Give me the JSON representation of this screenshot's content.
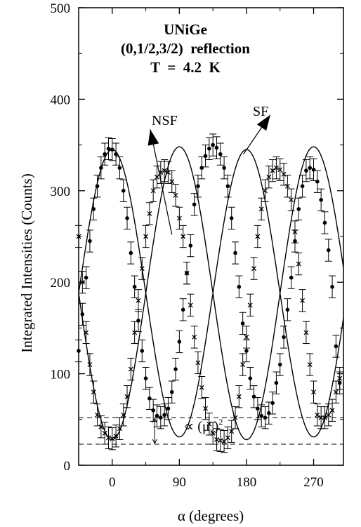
{
  "chart_data": {
    "type": "scatter",
    "title_lines": [
      "UNiGe",
      "(0,1/2,3/2)  reflection",
      "T  =  4.2  K"
    ],
    "xlabel": "α (degrees)",
    "ylabel": "Integrated Intensities (Counts)",
    "xlim": [
      -45,
      310
    ],
    "ylim": [
      0,
      500
    ],
    "xticks": [
      0,
      90,
      180,
      270
    ],
    "yticks": [
      0,
      100,
      200,
      300,
      400,
      500
    ],
    "grid": false,
    "legend": "none",
    "series": [
      {
        "name": "SF",
        "marker": "dot",
        "fit": {
          "mean": 188,
          "amplitude": 157,
          "phase_deg": 0,
          "period_deg": 180
        },
        "x": [
          -45,
          -40,
          -35,
          -30,
          -25,
          -20,
          -15,
          -10,
          -5,
          0,
          5,
          10,
          15,
          20,
          25,
          30,
          35,
          40,
          45,
          50,
          55,
          60,
          65,
          70,
          75,
          80,
          85,
          90,
          95,
          100,
          105,
          110,
          115,
          120,
          125,
          130,
          135,
          140,
          145,
          150,
          155,
          160,
          165,
          170,
          175,
          180,
          185,
          190,
          195,
          200,
          205,
          210,
          215,
          220,
          225,
          230,
          235,
          240,
          245,
          250,
          255,
          260,
          265,
          270,
          275,
          280,
          285,
          290,
          295,
          300,
          305
        ],
        "y": [
          125,
          165,
          205,
          245,
          280,
          305,
          325,
          340,
          346,
          345,
          340,
          325,
          300,
          270,
          232,
          195,
          158,
          125,
          95,
          73,
          60,
          54,
          52,
          55,
          62,
          80,
          105,
          135,
          170,
          210,
          240,
          285,
          305,
          325,
          338,
          346,
          350,
          347,
          340,
          325,
          305,
          270,
          232,
          195,
          155,
          125,
          95,
          75,
          62,
          54,
          52,
          57,
          68,
          90,
          110,
          140,
          170,
          205,
          245,
          280,
          305,
          322,
          325,
          323,
          310,
          290,
          265,
          235,
          195,
          130,
          90
        ],
        "err": 12
      },
      {
        "name": "NSF",
        "marker": "cross",
        "fit": {
          "mean": 188,
          "amplitude": -160,
          "phase_deg": 0,
          "period_deg": 180
        },
        "x": [
          -45,
          -40,
          -35,
          -30,
          -25,
          -20,
          -15,
          -10,
          -5,
          0,
          5,
          10,
          15,
          20,
          25,
          30,
          35,
          40,
          45,
          50,
          55,
          60,
          65,
          70,
          75,
          80,
          85,
          90,
          95,
          100,
          105,
          110,
          115,
          120,
          125,
          130,
          135,
          140,
          145,
          150,
          155,
          160,
          165,
          170,
          175,
          180,
          185,
          190,
          195,
          200,
          205,
          210,
          215,
          220,
          225,
          230,
          235,
          240,
          245,
          250,
          255,
          260,
          265,
          270,
          275,
          280,
          285,
          290,
          295,
          300,
          305
        ],
        "y": [
          250,
          200,
          145,
          110,
          80,
          55,
          42,
          35,
          30,
          29,
          32,
          40,
          55,
          75,
          105,
          145,
          180,
          215,
          250,
          275,
          300,
          315,
          320,
          322,
          320,
          310,
          295,
          270,
          250,
          210,
          175,
          140,
          112,
          85,
          62,
          45,
          35,
          28,
          27,
          26,
          30,
          37,
          52,
          75,
          110,
          140,
          175,
          215,
          250,
          280,
          300,
          315,
          322,
          325,
          323,
          318,
          305,
          290,
          255,
          220,
          180,
          145,
          110,
          80,
          55,
          52,
          52,
          55,
          60,
          80,
          95
        ],
        "err": 12
      }
    ],
    "annotations": {
      "label_nsf": "NSF",
      "label_sf": "SF",
      "moment_label": "∝ (μ",
      "moment_sub": "x",
      "moment_close": ")",
      "moment_sup": "2",
      "dashed_levels": [
        52,
        23
      ]
    }
  }
}
